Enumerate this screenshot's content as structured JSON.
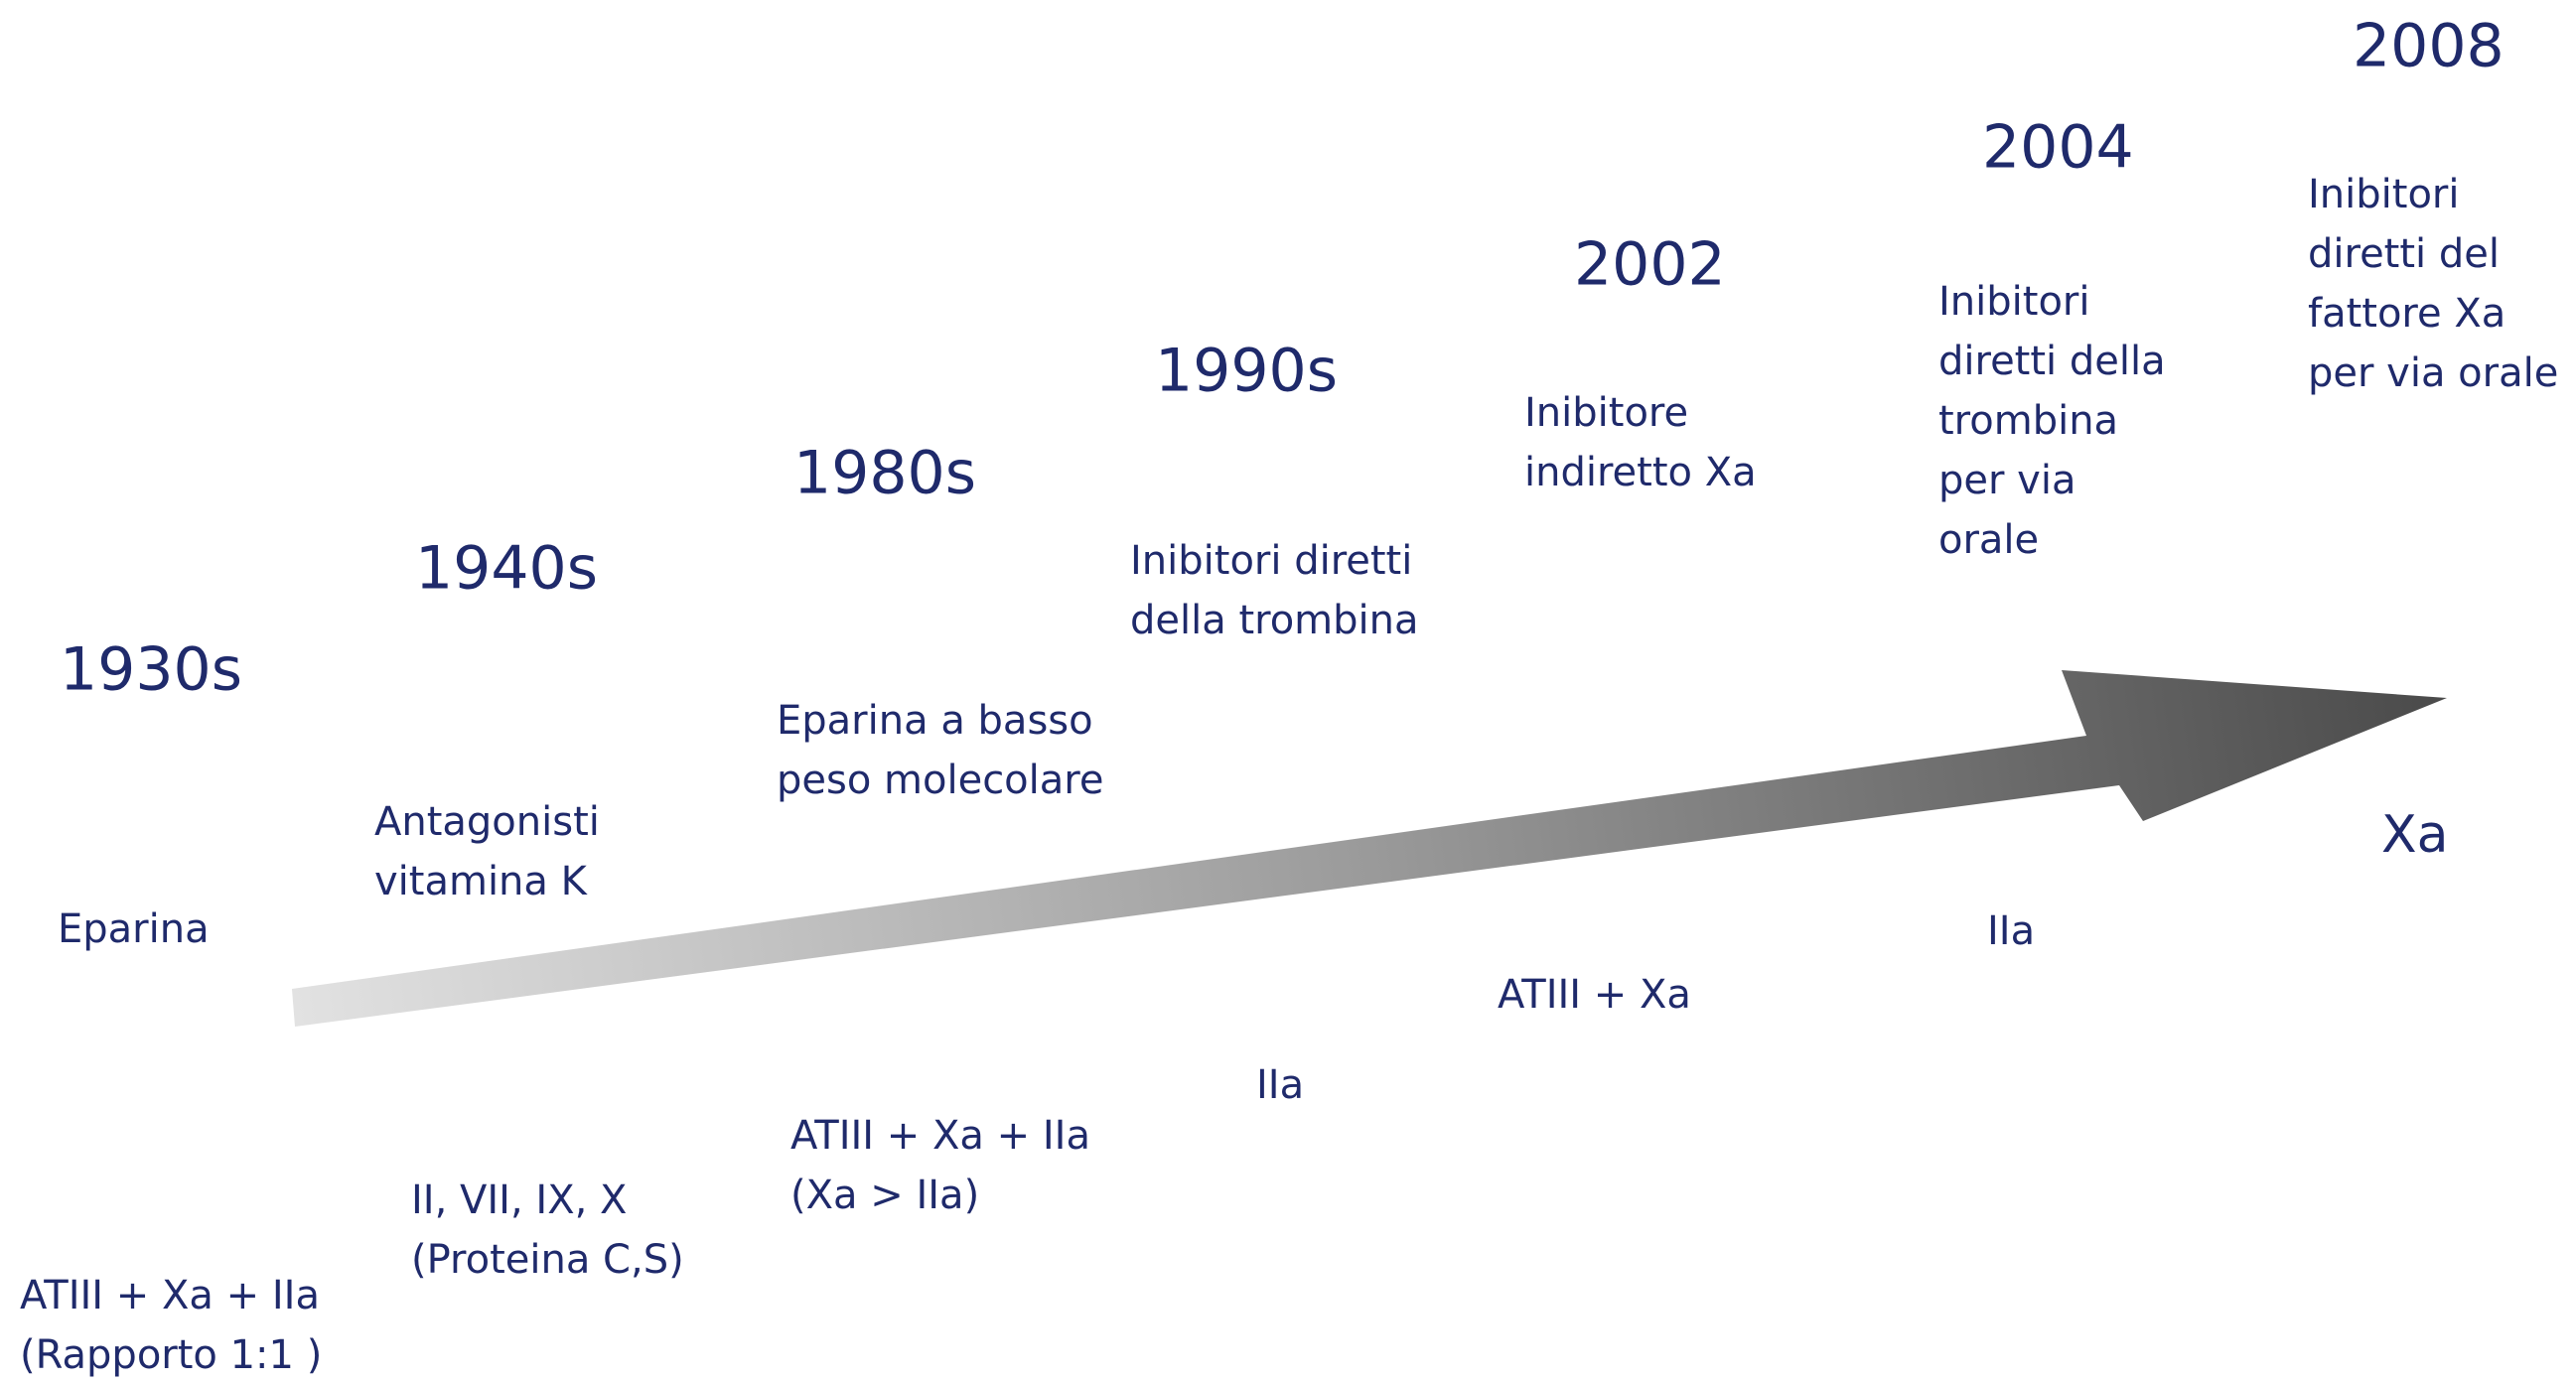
{
  "events": [
    {
      "year": "1930s",
      "description": [
        "Eparina"
      ],
      "target": [
        "ATIII + Xa + IIa",
        "(Rapporto 1:1 )"
      ]
    },
    {
      "year": "1940s",
      "description": [
        "Antagonisti",
        "vitamina K"
      ],
      "target": [
        "II, VII, IX, X",
        "(Proteina C,S)"
      ]
    },
    {
      "year": "1980s",
      "description": [
        "Eparina a basso",
        "peso molecolare"
      ],
      "target": [
        "ATIII + Xa + IIa",
        "(Xa > IIa)"
      ]
    },
    {
      "year": "1990s",
      "description": [
        "Inibitori diretti",
        "della trombina"
      ],
      "target": [
        "IIa"
      ]
    },
    {
      "year": "2002",
      "description": [
        "Inibitore",
        "indiretto Xa"
      ],
      "target": [
        "ATIII + Xa"
      ]
    },
    {
      "year": "2004",
      "description": [
        "Inibitori",
        "diretti della",
        "trombina",
        "per via",
        "orale"
      ],
      "target": [
        "IIa"
      ]
    },
    {
      "year": "2008",
      "description": [
        "Inibitori",
        "diretti del",
        "fattore Xa",
        "per via orale"
      ],
      "target": [
        "Xa"
      ]
    }
  ]
}
